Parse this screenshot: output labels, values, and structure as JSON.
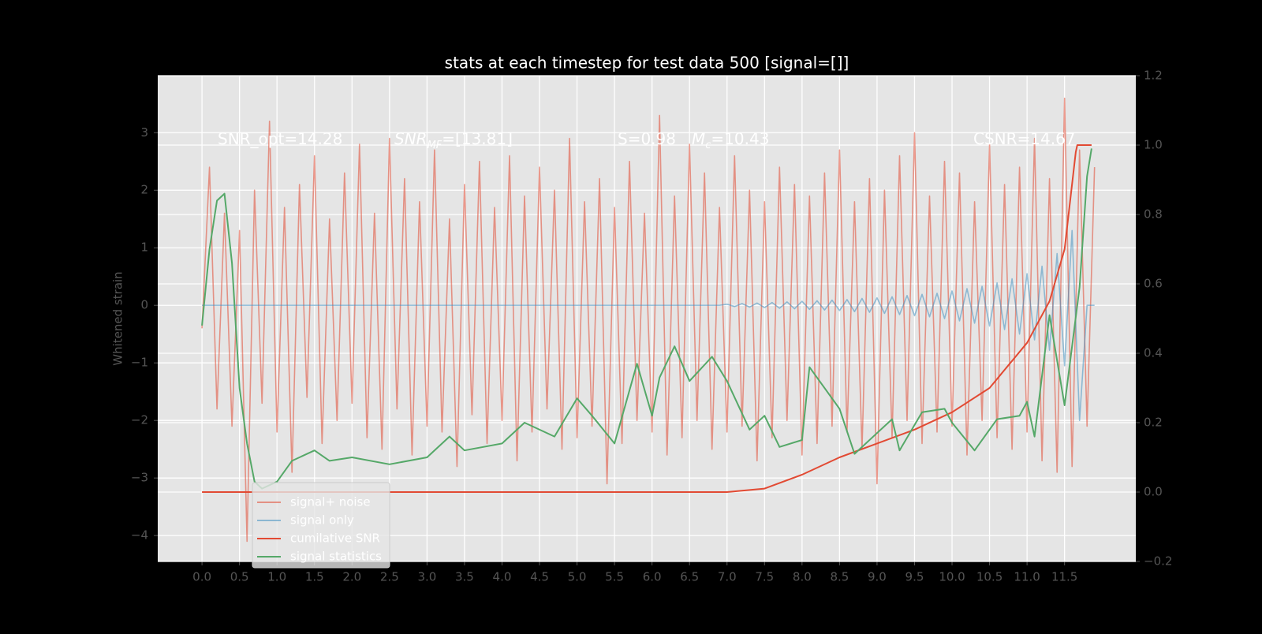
{
  "chart_data": {
    "type": "line",
    "title": "stats at each timestep for test data 500 [signal=[]]",
    "ylabel": "Whitened strain",
    "grid": true,
    "legend": "lower left",
    "background": "#e5e5e5",
    "annotations": [
      {
        "parts": [
          {
            "text": "SNR_opt=14.28"
          }
        ]
      },
      {
        "parts": [
          {
            "text": "SNR",
            "italic": true
          },
          {
            "text": "MF",
            "italic": true,
            "sub": true
          },
          {
            "text": "=[13.81]"
          }
        ]
      },
      {
        "parts": [
          {
            "text": "S=0.98"
          }
        ]
      },
      {
        "parts": [
          {
            "text": "M",
            "italic": true
          },
          {
            "text": "c",
            "italic": true,
            "sub": true
          },
          {
            "text": "=10.43"
          }
        ]
      },
      {
        "parts": [
          {
            "text": "CSNR=14.67"
          }
        ]
      }
    ],
    "xlim": [
      -0.59,
      12.45
    ],
    "ylim": [
      -4.45,
      3.99
    ],
    "y2lim": [
      -0.2,
      1.2
    ],
    "xticks": [
      {
        "value": 0,
        "label": "0.0"
      },
      0.5,
      {
        "value": 1,
        "label": "1.0"
      },
      1.5,
      {
        "value": 2,
        "label": "2.0"
      },
      2.5,
      {
        "value": 3,
        "label": "3.0"
      },
      3.5,
      {
        "value": 4,
        "label": "4.0"
      },
      4.5,
      {
        "value": 5,
        "label": "5.0"
      },
      5.5,
      {
        "value": 6,
        "label": "6.0"
      },
      6.5,
      {
        "value": 7,
        "label": "7.0"
      },
      7.5,
      {
        "value": 8,
        "label": "8.0"
      },
      8.5,
      {
        "value": 9,
        "label": "9.0"
      },
      9.5,
      {
        "value": 10,
        "label": "10.0"
      },
      10.5,
      {
        "value": 11,
        "label": "11.0"
      },
      11.5
    ],
    "yticks": [
      {
        "value": -4,
        "label": "−4"
      },
      {
        "value": -3,
        "label": "−3"
      },
      {
        "value": -2,
        "label": "−2"
      },
      {
        "value": -1,
        "label": "−1"
      },
      0,
      1,
      2,
      3
    ],
    "y2ticks": [
      {
        "value": -0.2,
        "label": "−0.2"
      },
      {
        "value": 0,
        "label": "0.0"
      },
      0.2,
      0.4,
      0.6,
      0.8,
      {
        "value": 1,
        "label": "1.0"
      },
      1.2
    ],
    "series": [
      {
        "name": "signal+ noise",
        "color": "#E24A33",
        "opacity": 0.55,
        "x": [
          0.0,
          0.1,
          0.2,
          0.3,
          0.4,
          0.5,
          0.6,
          0.7,
          0.8,
          0.9,
          1.0,
          1.1,
          1.2,
          1.3,
          1.4,
          1.5,
          1.6,
          1.7,
          1.8,
          1.9,
          2.0,
          2.1,
          2.2,
          2.3,
          2.4,
          2.5,
          2.6,
          2.7,
          2.8,
          2.9,
          3.0,
          3.1,
          3.2,
          3.3,
          3.4,
          3.5,
          3.6,
          3.7,
          3.8,
          3.9,
          4.0,
          4.1,
          4.2,
          4.3,
          4.4,
          4.5,
          4.6,
          4.7,
          4.8,
          4.9,
          5.0,
          5.1,
          5.2,
          5.3,
          5.4,
          5.5,
          5.6,
          5.7,
          5.8,
          5.9,
          6.0,
          6.1,
          6.2,
          6.3,
          6.4,
          6.5,
          6.6,
          6.7,
          6.8,
          6.9,
          7.0,
          7.1,
          7.2,
          7.3,
          7.4,
          7.5,
          7.6,
          7.7,
          7.8,
          7.9,
          8.0,
          8.1,
          8.2,
          8.3,
          8.4,
          8.5,
          8.6,
          8.7,
          8.8,
          8.9,
          9.0,
          9.1,
          9.2,
          9.3,
          9.4,
          9.5,
          9.6,
          9.7,
          9.8,
          9.9,
          10.0,
          10.1,
          10.2,
          10.3,
          10.4,
          10.5,
          10.6,
          10.7,
          10.8,
          10.9,
          11.0,
          11.1,
          11.2,
          11.3,
          11.4,
          11.5,
          11.6,
          11.7,
          11.8,
          11.9
        ],
        "values": [
          -0.4,
          2.4,
          -1.8,
          1.6,
          -2.1,
          1.3,
          -4.1,
          2.0,
          -1.7,
          3.2,
          -2.2,
          1.7,
          -2.9,
          2.1,
          -1.6,
          2.6,
          -2.4,
          1.5,
          -2.0,
          2.3,
          -1.7,
          2.8,
          -2.3,
          1.6,
          -2.5,
          2.9,
          -1.8,
          2.2,
          -2.6,
          1.8,
          -2.1,
          2.7,
          -2.2,
          1.5,
          -2.8,
          2.1,
          -1.9,
          2.5,
          -2.4,
          1.7,
          -2.0,
          2.6,
          -2.7,
          1.9,
          -2.2,
          2.4,
          -1.8,
          2.0,
          -2.5,
          2.9,
          -2.3,
          1.8,
          -2.1,
          2.2,
          -3.1,
          1.7,
          -2.4,
          2.5,
          -2.0,
          1.6,
          -2.2,
          3.3,
          -2.6,
          1.9,
          -2.3,
          2.8,
          -2.0,
          2.3,
          -2.5,
          1.7,
          -2.2,
          2.6,
          -2.1,
          2.0,
          -2.7,
          1.8,
          -2.3,
          2.4,
          -2.0,
          2.1,
          -2.6,
          1.9,
          -2.4,
          2.3,
          -2.1,
          2.7,
          -2.2,
          1.8,
          -2.5,
          2.2,
          -3.1,
          2.0,
          -2.3,
          2.6,
          -2.0,
          3.0,
          -2.4,
          1.9,
          -2.2,
          2.5,
          -2.1,
          2.3,
          -2.6,
          1.8,
          -2.0,
          2.8,
          -2.3,
          2.1,
          -2.5,
          2.4,
          -2.2,
          2.9,
          -2.7,
          2.2,
          -2.9,
          3.6,
          -2.8,
          2.7,
          -2.1,
          2.4
        ]
      },
      {
        "name": "signal only",
        "color": "#348ABD",
        "opacity": 0.5,
        "x": [
          0.0,
          0.1,
          0.2,
          0.3,
          0.4,
          0.5,
          0.6,
          0.7,
          0.8,
          0.9,
          1.0,
          1.1,
          1.2,
          1.3,
          1.4,
          1.5,
          1.6,
          1.7,
          1.8,
          1.9,
          2.0,
          2.1,
          2.2,
          2.3,
          2.4,
          2.5,
          2.6,
          2.7,
          2.8,
          2.9,
          3.0,
          3.1,
          3.2,
          3.3,
          3.4,
          3.5,
          3.6,
          3.7,
          3.8,
          3.9,
          4.0,
          4.1,
          4.2,
          4.3,
          4.4,
          4.5,
          4.6,
          4.7,
          4.8,
          4.9,
          5.0,
          5.1,
          5.2,
          5.3,
          5.4,
          5.5,
          5.6,
          5.7,
          5.8,
          5.9,
          6.0,
          6.1,
          6.2,
          6.3,
          6.4,
          6.5,
          6.6,
          6.7,
          6.8,
          6.9,
          7.0,
          7.1,
          7.2,
          7.3,
          7.4,
          7.5,
          7.6,
          7.7,
          7.8,
          7.9,
          8.0,
          8.1,
          8.2,
          8.3,
          8.4,
          8.5,
          8.6,
          8.7,
          8.8,
          8.9,
          9.0,
          9.1,
          9.2,
          9.3,
          9.4,
          9.5,
          9.6,
          9.7,
          9.8,
          9.9,
          10.0,
          10.1,
          10.2,
          10.3,
          10.4,
          10.5,
          10.6,
          10.7,
          10.8,
          10.9,
          11.0,
          11.1,
          11.2,
          11.3,
          11.4,
          11.5,
          11.6,
          11.7,
          11.8,
          11.9
        ],
        "values": [
          0,
          0,
          0,
          0,
          0,
          0,
          0,
          0,
          0,
          0,
          0,
          0,
          0,
          0,
          0,
          0,
          0,
          0,
          0,
          0,
          0,
          0,
          0,
          0,
          0,
          0,
          0,
          0,
          0,
          0,
          0,
          0,
          0,
          0,
          0,
          0,
          0,
          0,
          0,
          0,
          0,
          0,
          0,
          0,
          0,
          0,
          0,
          0,
          0,
          0,
          0,
          0,
          0,
          0,
          0,
          0,
          0,
          0,
          0,
          0,
          0,
          0,
          0,
          0,
          0,
          0,
          0,
          0,
          0,
          0,
          0.02,
          -0.02,
          0.03,
          -0.03,
          0.04,
          -0.04,
          0.05,
          -0.05,
          0.06,
          -0.06,
          0.07,
          -0.07,
          0.08,
          -0.08,
          0.09,
          -0.09,
          0.1,
          -0.11,
          0.12,
          -0.12,
          0.13,
          -0.14,
          0.15,
          -0.16,
          0.17,
          -0.18,
          0.19,
          -0.2,
          0.21,
          -0.23,
          0.25,
          -0.27,
          0.29,
          -0.31,
          0.33,
          -0.36,
          0.39,
          -0.42,
          0.46,
          -0.5,
          0.55,
          -0.6,
          0.68,
          -0.78,
          0.9,
          -1.05,
          1.3,
          -2.0,
          0,
          0
        ]
      },
      {
        "name": "cumilative SNR",
        "color": "#E24A33",
        "axis": "y2",
        "x": [
          0,
          6.5,
          7.0,
          7.5,
          8.0,
          8.5,
          9.0,
          9.5,
          10.0,
          10.5,
          11.0,
          11.3,
          11.5,
          11.65,
          11.67,
          11.86
        ],
        "values": [
          0,
          0,
          0.0,
          0.01,
          0.05,
          0.1,
          0.14,
          0.18,
          0.23,
          0.3,
          0.43,
          0.55,
          0.7,
          0.98,
          1.0,
          1.0
        ]
      },
      {
        "name": "signal statistics",
        "color": "#55A868",
        "axis": "y2",
        "x": [
          0,
          0.1,
          0.2,
          0.3,
          0.4,
          0.5,
          0.6,
          0.7,
          0.8,
          1.0,
          1.2,
          1.5,
          1.7,
          2.0,
          2.5,
          3.0,
          3.3,
          3.5,
          4.0,
          4.3,
          4.7,
          5.0,
          5.2,
          5.5,
          5.8,
          6.0,
          6.1,
          6.3,
          6.5,
          6.8,
          7.0,
          7.3,
          7.5,
          7.7,
          8.0,
          8.1,
          8.5,
          8.7,
          9.0,
          9.2,
          9.3,
          9.6,
          9.9,
          10.0,
          10.3,
          10.6,
          10.9,
          11.0,
          11.1,
          11.3,
          11.5,
          11.7,
          11.8,
          11.86
        ],
        "values": [
          0.48,
          0.7,
          0.84,
          0.86,
          0.66,
          0.3,
          0.14,
          0.03,
          0.01,
          0.03,
          0.09,
          0.12,
          0.09,
          0.1,
          0.08,
          0.1,
          0.16,
          0.12,
          0.14,
          0.2,
          0.16,
          0.27,
          0.22,
          0.14,
          0.37,
          0.22,
          0.33,
          0.42,
          0.32,
          0.39,
          0.32,
          0.18,
          0.22,
          0.13,
          0.15,
          0.36,
          0.24,
          0.11,
          0.17,
          0.21,
          0.12,
          0.23,
          0.24,
          0.2,
          0.12,
          0.21,
          0.22,
          0.26,
          0.16,
          0.51,
          0.25,
          0.59,
          0.91,
          0.99
        ]
      }
    ]
  }
}
